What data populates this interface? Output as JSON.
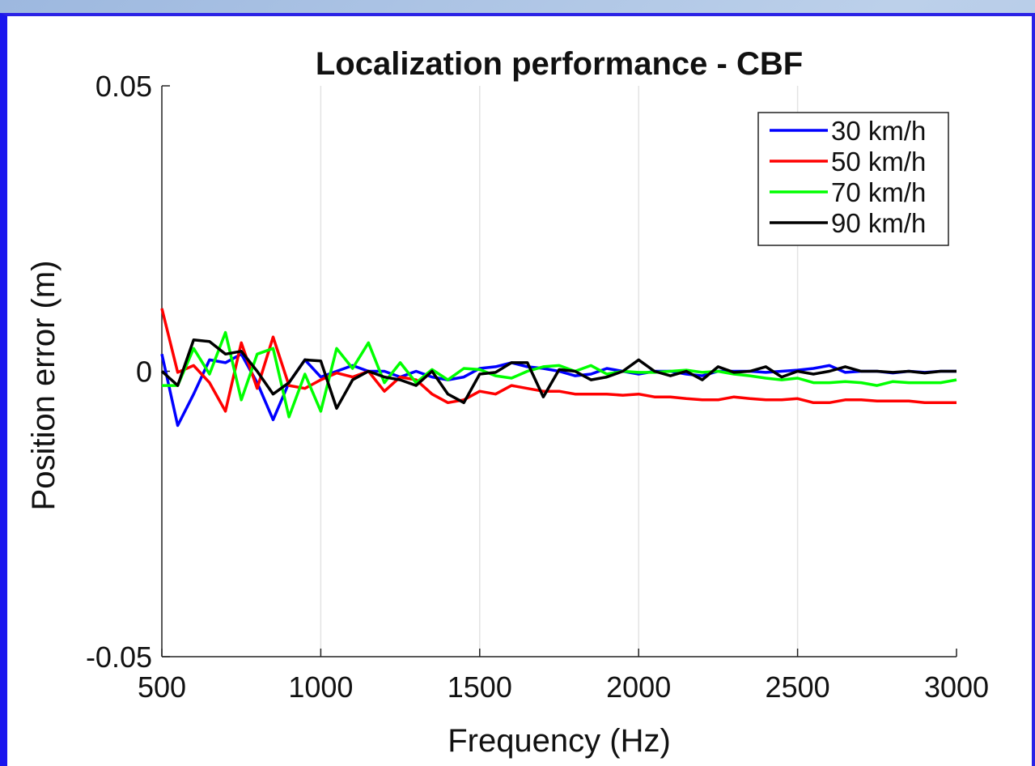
{
  "chart_data": {
    "type": "line",
    "title": "Localization performance - CBF",
    "xlabel": "Frequency (Hz)",
    "ylabel": "Position error (m)",
    "xlim": [
      500,
      3000
    ],
    "ylim": [
      -0.05,
      0.05
    ],
    "xticks": [
      500,
      1000,
      1500,
      2000,
      2500,
      3000
    ],
    "xtick_labels": [
      "500",
      "1000",
      "1500",
      "2000",
      "2500",
      "3000"
    ],
    "yticks": [
      -0.05,
      0,
      0.05
    ],
    "ytick_labels": [
      "-0.05",
      "0",
      "0.05"
    ],
    "grid": "vertical",
    "legend_position": "top-right",
    "x": [
      500,
      550,
      600,
      650,
      700,
      750,
      800,
      850,
      900,
      950,
      1000,
      1050,
      1100,
      1150,
      1200,
      1250,
      1300,
      1350,
      1400,
      1450,
      1500,
      1550,
      1600,
      1650,
      1700,
      1750,
      1800,
      1850,
      1900,
      1950,
      2000,
      2050,
      2100,
      2150,
      2200,
      2250,
      2300,
      2350,
      2400,
      2450,
      2500,
      2550,
      2600,
      2650,
      2700,
      2750,
      2800,
      2850,
      2900,
      2950,
      3000
    ],
    "series": [
      {
        "name": "30 km/h",
        "color": "#0000ff",
        "values": [
          0.003,
          -0.0095,
          -0.004,
          0.002,
          0.0015,
          0.003,
          -0.002,
          -0.0085,
          -0.002,
          0.002,
          -0.001,
          0.0,
          0.001,
          0.0,
          0.0,
          -0.001,
          0.0,
          -0.001,
          -0.0015,
          -0.001,
          0.0005,
          0.0008,
          0.0015,
          0.0008,
          0.0005,
          0.0,
          -0.0008,
          -0.0005,
          0.0005,
          0.0,
          -0.0005,
          0.0,
          0.0,
          -0.0005,
          -0.0008,
          0.0,
          0.0,
          0.0,
          -0.0002,
          0.0,
          0.0002,
          0.0005,
          0.001,
          -0.0002,
          0.0,
          0.0,
          -0.0003,
          0.0,
          -0.0002,
          0.0,
          0.0
        ]
      },
      {
        "name": "50 km/h",
        "color": "#ff0000",
        "values": [
          0.011,
          -0.0002,
          0.001,
          -0.002,
          -0.007,
          0.005,
          -0.003,
          0.006,
          -0.0025,
          -0.003,
          -0.0015,
          -0.0003,
          -0.001,
          0.0,
          -0.0035,
          -0.001,
          -0.0015,
          -0.004,
          -0.0055,
          -0.005,
          -0.0035,
          -0.004,
          -0.0025,
          -0.003,
          -0.0035,
          -0.0035,
          -0.004,
          -0.004,
          -0.004,
          -0.0042,
          -0.004,
          -0.0045,
          -0.0045,
          -0.0048,
          -0.005,
          -0.005,
          -0.0045,
          -0.0048,
          -0.005,
          -0.005,
          -0.0048,
          -0.0055,
          -0.0055,
          -0.005,
          -0.005,
          -0.0052,
          -0.0052,
          -0.0052,
          -0.0055,
          -0.0055,
          -0.0055
        ]
      },
      {
        "name": "70 km/h",
        "color": "#00ff00",
        "values": [
          -0.0025,
          -0.0025,
          0.004,
          -0.0005,
          0.0068,
          -0.005,
          0.003,
          0.004,
          -0.008,
          -0.0005,
          -0.007,
          0.004,
          0.0005,
          0.005,
          -0.002,
          0.0015,
          -0.002,
          0.0003,
          -0.0015,
          0.0005,
          0.0003,
          -0.0008,
          -0.0012,
          0.0,
          0.0008,
          0.001,
          0.0,
          0.001,
          -0.0005,
          0.0,
          -0.0002,
          -0.0002,
          0.0,
          0.0002,
          -0.0002,
          0.0,
          -0.0005,
          -0.0008,
          -0.0012,
          -0.0015,
          -0.0012,
          -0.002,
          -0.002,
          -0.0018,
          -0.002,
          -0.0025,
          -0.0018,
          -0.002,
          -0.002,
          -0.002,
          -0.0015
        ]
      },
      {
        "name": "90 km/h",
        "color": "#000000",
        "values": [
          0.0,
          -0.0025,
          0.0055,
          0.0052,
          0.003,
          0.0035,
          0.0,
          -0.004,
          -0.002,
          0.002,
          0.0018,
          -0.0065,
          -0.0015,
          0.0,
          -0.001,
          -0.0015,
          -0.0025,
          0.0,
          -0.004,
          -0.0055,
          -0.0005,
          -0.0002,
          0.0015,
          0.0015,
          -0.0045,
          0.0003,
          0.0,
          -0.0015,
          -0.001,
          0.0,
          0.002,
          0.0,
          -0.0008,
          0.0,
          -0.0015,
          0.0008,
          -0.0002,
          0.0,
          0.0008,
          -0.001,
          0.0,
          -0.0005,
          0.0,
          0.0008,
          0.0,
          0.0,
          -0.0002,
          0.0,
          -0.0003,
          0.0,
          0.0
        ]
      }
    ]
  }
}
